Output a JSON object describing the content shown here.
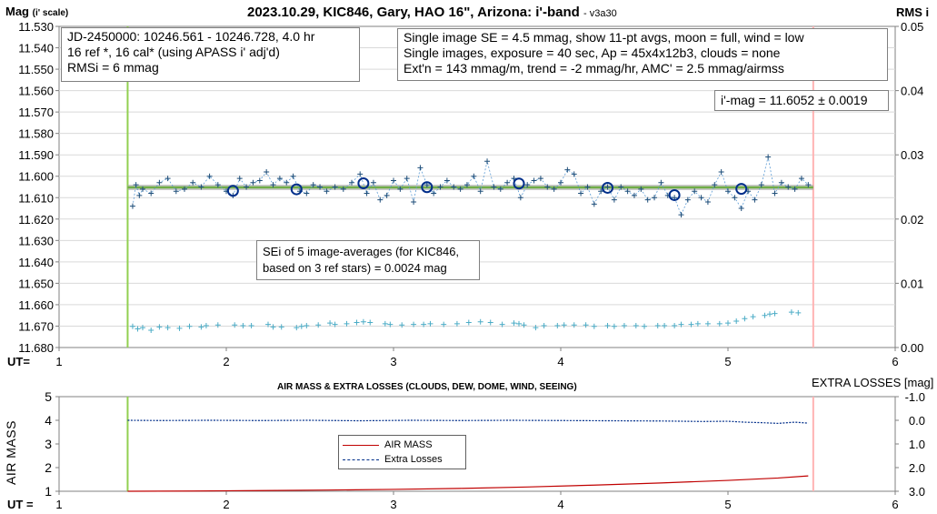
{
  "chart_data": [
    {
      "type": "line",
      "title": "2023.10.29, KIC846, Gary, HAO 16\", Arizona: i'-band",
      "title_suffix": "- v3a30",
      "ylabel": "Mag",
      "ylabel_sub": "(i' scale)",
      "y2label": "RMS i",
      "xlabel": "UT=",
      "xlim": [
        1,
        6
      ],
      "ylim": [
        11.68,
        11.53
      ],
      "y_reversed": true,
      "y2lim": [
        0,
        0.05
      ],
      "x_ticks": [
        "1",
        "2",
        "3",
        "4",
        "5",
        "6"
      ],
      "y_ticks": [
        "11.530",
        "11.540",
        "11.550",
        "11.560",
        "11.570",
        "11.580",
        "11.590",
        "11.600",
        "11.610",
        "11.620",
        "11.630",
        "11.640",
        "11.650",
        "11.660",
        "11.670",
        "11.680"
      ],
      "y2_ticks": [
        "0.05",
        "0.04",
        "0.03",
        "0.02",
        "0.01",
        "0.00"
      ],
      "vertical_lines": [
        {
          "x": 1.41,
          "color": "#92d050"
        },
        {
          "x": 5.51,
          "color": "#ffb3b3"
        }
      ],
      "fit_line": {
        "x": [
          1.41,
          5.51
        ],
        "y": [
          11.6052,
          11.6052
        ],
        "colors": [
          "#a6a6a6",
          "#70ad47"
        ]
      },
      "annotations": {
        "info_left": [
          "JD-2450000: 10246.561 - 10246.728, 4.0  hr",
          "16 ref *, 16 cal* (using APASS i' adj'd)",
          "RMSi = 6 mmag"
        ],
        "info_right": [
          "Single image SE = 4.5 mmag, show 11-pt avgs, moon = full, wind = low",
          "Single images, exposure = 40 sec, Ap = 45x4x12b3, clouds = none",
          "Ext'n = 143 mmag/m, trend = -2 mmag/hr, AMC' = 2.5 mmag/airmss"
        ],
        "result": "i'-mag = 11.6052 ± 0.0019",
        "sei": [
          "SEi of 5 image-averages (for KIC846,",
          "based on 3 ref stars) = 0.0024 mag"
        ]
      },
      "series": [
        {
          "marker": "plus",
          "color": "#1f4e79",
          "x": [
            1.44,
            1.46,
            1.48,
            1.5,
            1.55,
            1.6,
            1.65,
            1.7,
            1.75,
            1.8,
            1.85,
            1.9,
            1.95,
            2.0,
            2.04,
            2.08,
            2.12,
            2.16,
            2.2,
            2.24,
            2.28,
            2.32,
            2.36,
            2.4,
            2.44,
            2.48,
            2.52,
            2.56,
            2.6,
            2.65,
            2.7,
            2.75,
            2.8,
            2.84,
            2.88,
            2.92,
            2.96,
            3.0,
            3.04,
            3.08,
            3.12,
            3.16,
            3.2,
            3.24,
            3.28,
            3.32,
            3.36,
            3.4,
            3.44,
            3.48,
            3.52,
            3.56,
            3.6,
            3.64,
            3.68,
            3.72,
            3.76,
            3.8,
            3.84,
            3.88,
            3.92,
            3.96,
            4.0,
            4.04,
            4.08,
            4.12,
            4.16,
            4.2,
            4.24,
            4.28,
            4.32,
            4.36,
            4.4,
            4.44,
            4.48,
            4.52,
            4.56,
            4.6,
            4.64,
            4.68,
            4.72,
            4.76,
            4.8,
            4.84,
            4.88,
            4.92,
            4.96,
            5.0,
            5.04,
            5.08,
            5.12,
            5.16,
            5.2,
            5.24,
            5.28,
            5.32,
            5.36,
            5.4,
            5.44,
            5.48
          ],
          "y": [
            11.614,
            11.604,
            11.609,
            11.606,
            11.608,
            11.603,
            11.601,
            11.607,
            11.606,
            11.603,
            11.605,
            11.6,
            11.604,
            11.607,
            11.609,
            11.601,
            11.605,
            11.603,
            11.602,
            11.598,
            11.604,
            11.601,
            11.603,
            11.6,
            11.607,
            11.608,
            11.604,
            11.605,
            11.607,
            11.605,
            11.606,
            11.603,
            11.599,
            11.608,
            11.603,
            11.611,
            11.609,
            11.602,
            11.606,
            11.601,
            11.612,
            11.596,
            11.604,
            11.608,
            11.605,
            11.602,
            11.605,
            11.606,
            11.604,
            11.6,
            11.607,
            11.593,
            11.605,
            11.606,
            11.603,
            11.601,
            11.61,
            11.604,
            11.602,
            11.601,
            11.605,
            11.606,
            11.603,
            11.597,
            11.599,
            11.608,
            11.605,
            11.613,
            11.607,
            11.605,
            11.611,
            11.605,
            11.607,
            11.609,
            11.606,
            11.611,
            11.61,
            11.603,
            11.609,
            11.61,
            11.618,
            11.611,
            11.607,
            11.61,
            11.612,
            11.604,
            11.598,
            11.607,
            11.61,
            11.615,
            11.607,
            11.611,
            11.604,
            11.591,
            11.608,
            11.603,
            11.605,
            11.606,
            11.601,
            11.604
          ]
        },
        {
          "name": "11-pt avgs",
          "marker": "open-circle",
          "color": "#002e8a",
          "x": [
            2.04,
            2.42,
            2.82,
            3.2,
            3.75,
            4.28,
            4.68,
            5.08
          ],
          "y": [
            11.6068,
            11.6061,
            11.6033,
            11.6051,
            11.6034,
            11.6054,
            11.6088,
            11.6059
          ]
        },
        {
          "name": "RMS i",
          "axis": "right",
          "marker": "plus",
          "color": "#4bacc6",
          "x": [
            1.44,
            1.47,
            1.5,
            1.55,
            1.6,
            1.65,
            1.72,
            1.78,
            1.85,
            1.88,
            1.95,
            2.05,
            2.1,
            2.15,
            2.25,
            2.28,
            2.33,
            2.42,
            2.45,
            2.48,
            2.55,
            2.62,
            2.65,
            2.72,
            2.78,
            2.82,
            2.86,
            2.95,
            2.98,
            3.05,
            3.12,
            3.18,
            3.22,
            3.3,
            3.38,
            3.45,
            3.52,
            3.58,
            3.65,
            3.72,
            3.75,
            3.78,
            3.85,
            3.9,
            3.98,
            4.02,
            4.08,
            4.15,
            4.2,
            4.28,
            4.32,
            4.38,
            4.45,
            4.5,
            4.58,
            4.62,
            4.68,
            4.72,
            4.78,
            4.82,
            4.88,
            4.95,
            5.0,
            5.05,
            5.1,
            5.15,
            5.22,
            5.25,
            5.28,
            5.38,
            5.42
          ],
          "y": [
            0.0033,
            0.0029,
            0.0031,
            0.0027,
            0.0032,
            0.0031,
            0.003,
            0.0033,
            0.0032,
            0.0034,
            0.0035,
            0.0035,
            0.0034,
            0.0034,
            0.0036,
            0.0032,
            0.0032,
            0.0031,
            0.0033,
            0.0034,
            0.0035,
            0.0038,
            0.0036,
            0.0037,
            0.0039,
            0.004,
            0.0039,
            0.0037,
            0.0036,
            0.0035,
            0.0036,
            0.0036,
            0.0037,
            0.0036,
            0.0037,
            0.0039,
            0.004,
            0.0039,
            0.0036,
            0.0038,
            0.0037,
            0.0035,
            0.0031,
            0.0034,
            0.0034,
            0.0035,
            0.0035,
            0.0035,
            0.0033,
            0.0034,
            0.0033,
            0.0034,
            0.0034,
            0.0033,
            0.0034,
            0.0034,
            0.0034,
            0.0036,
            0.0036,
            0.0037,
            0.0037,
            0.0037,
            0.0038,
            0.0041,
            0.0045,
            0.0048,
            0.005,
            0.0052,
            0.0053,
            0.0055,
            0.0054
          ]
        }
      ]
    },
    {
      "type": "line",
      "title": "AIR MASS & EXTRA LOSSES (CLOUDS, DEW, DOME, WIND, SEEING)",
      "ylabel": "AIR MASS",
      "y2label": "EXTRA LOSSES [mag]",
      "xlabel": "UT =",
      "xlim": [
        1,
        6
      ],
      "ylim": [
        1,
        5
      ],
      "y2lim": [
        -1.0,
        3.0
      ],
      "y2_reversed": true,
      "x_ticks": [
        "1",
        "2",
        "3",
        "4",
        "5",
        "6"
      ],
      "y_ticks": [
        "5",
        "4",
        "3",
        "2",
        "1"
      ],
      "y2_ticks": [
        "-1.0",
        "0.0",
        "1.0",
        "2.0",
        "3.0"
      ],
      "vertical_lines": [
        {
          "x": 1.41,
          "color": "#92d050"
        },
        {
          "x": 5.51,
          "color": "#ffb3b3"
        }
      ],
      "legend": [
        "AIR MASS",
        "Extra Losses"
      ],
      "series": [
        {
          "name": "AIR MASS",
          "color": "#c00000",
          "x": [
            1.41,
            1.8,
            2.2,
            2.6,
            3.0,
            3.4,
            3.8,
            4.2,
            4.6,
            5.0,
            5.3,
            5.48
          ],
          "y": [
            1.0,
            1.01,
            1.03,
            1.05,
            1.08,
            1.12,
            1.18,
            1.26,
            1.35,
            1.46,
            1.56,
            1.65
          ]
        },
        {
          "name": "Extra Losses",
          "axis": "right",
          "color": "#002e8a",
          "x": [
            1.41,
            1.6,
            1.9,
            2.2,
            2.5,
            2.8,
            3.1,
            3.4,
            3.7,
            4.0,
            4.3,
            4.6,
            4.85,
            5.0,
            5.1,
            5.2,
            5.3,
            5.4,
            5.48
          ],
          "y": [
            0.0,
            0.01,
            0.0,
            0.01,
            0.0,
            0.02,
            0.0,
            0.01,
            0.0,
            0.01,
            0.02,
            0.03,
            0.05,
            0.04,
            0.08,
            0.1,
            0.13,
            0.08,
            0.12
          ]
        }
      ]
    }
  ]
}
